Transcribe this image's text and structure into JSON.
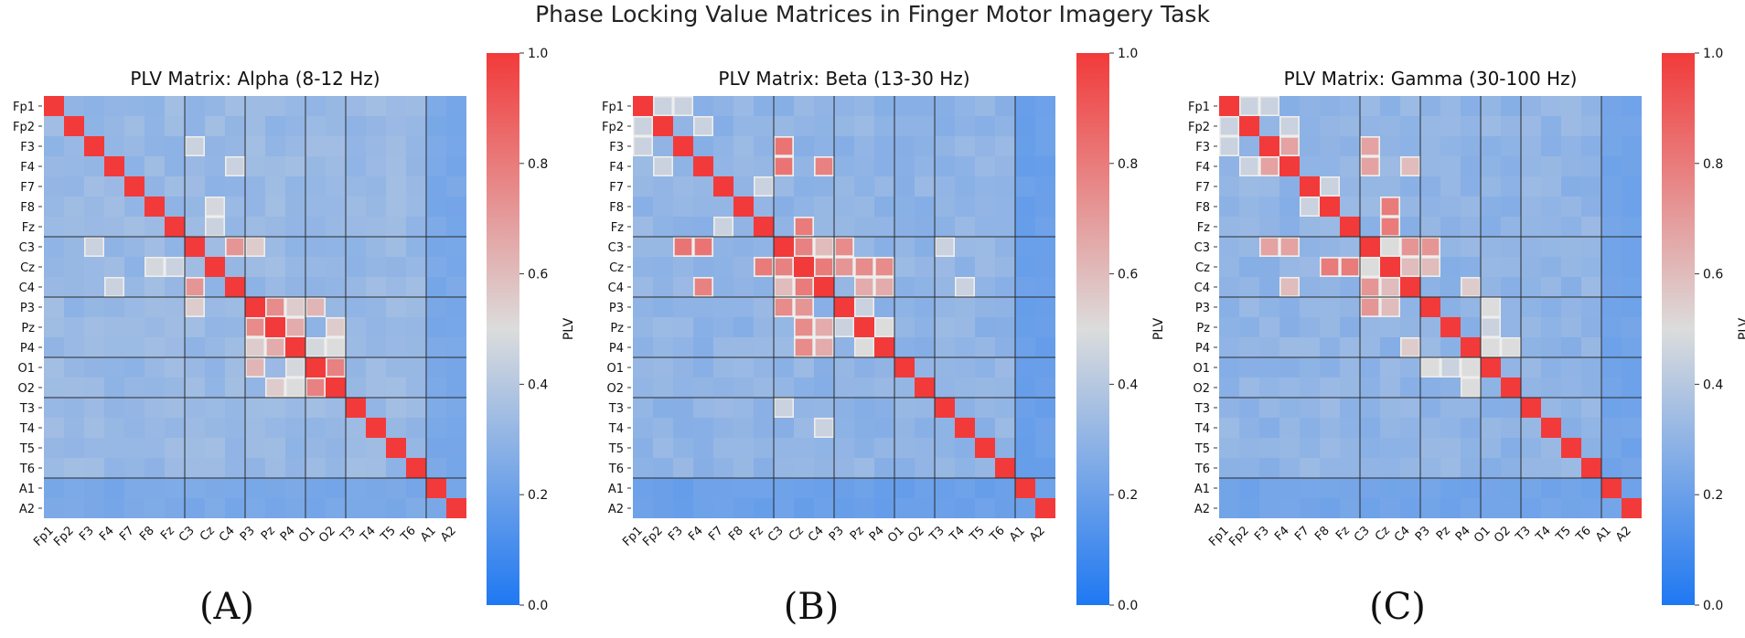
{
  "suptitle": "Phase Locking Value Matrices in Finger Motor Imagery Task",
  "panel_labels": [
    "(A)",
    "(B)",
    "(C)"
  ],
  "colors": {
    "low": "#1f78f2",
    "mid": "#dcdcdc",
    "high": "#f23a3a",
    "grid_line": "#2a2a2a",
    "highlight_border": "#e8e8e8"
  },
  "chart_data": [
    {
      "type": "heatmap",
      "title": "PLV Matrix: Alpha (8-12 Hz)",
      "channels": [
        "Fp1",
        "Fp2",
        "F3",
        "F4",
        "F7",
        "F8",
        "Fz",
        "C3",
        "Cz",
        "C4",
        "P3",
        "Pz",
        "P4",
        "O1",
        "O2",
        "T3",
        "T4",
        "T5",
        "T6",
        "A1",
        "A2"
      ],
      "diagonal": 1.0,
      "background": 0.32,
      "reference_rows": [
        19,
        20
      ],
      "reference_value": 0.24,
      "pairs": [
        [
          2,
          7,
          0.45
        ],
        [
          3,
          9,
          0.45
        ],
        [
          6,
          8,
          0.45
        ],
        [
          7,
          9,
          0.72
        ],
        [
          7,
          10,
          0.55
        ],
        [
          8,
          5,
          0.48
        ],
        [
          10,
          12,
          0.55
        ],
        [
          10,
          11,
          0.75
        ],
        [
          11,
          12,
          0.65
        ],
        [
          10,
          13,
          0.62
        ],
        [
          11,
          14,
          0.55
        ],
        [
          12,
          14,
          0.5
        ],
        [
          13,
          14,
          0.78
        ],
        [
          12,
          13,
          0.48
        ]
      ],
      "colorbar": {
        "label": "PLV",
        "range": [
          0.0,
          1.0
        ],
        "ticks": [
          "0.0",
          "0.2",
          "0.4",
          "0.6",
          "0.8",
          "1.0"
        ]
      }
    },
    {
      "type": "heatmap",
      "title": "PLV Matrix: Beta (13-30 Hz)",
      "channels": [
        "Fp1",
        "Fp2",
        "F3",
        "F4",
        "F7",
        "F8",
        "Fz",
        "C3",
        "Cz",
        "C4",
        "P3",
        "Pz",
        "P4",
        "O1",
        "O2",
        "T3",
        "T4",
        "T5",
        "T6",
        "A1",
        "A2"
      ],
      "diagonal": 1.0,
      "background": 0.3,
      "reference_rows": [
        19,
        20
      ],
      "reference_value": 0.2,
      "pairs": [
        [
          0,
          1,
          0.45
        ],
        [
          0,
          2,
          0.45
        ],
        [
          1,
          3,
          0.45
        ],
        [
          2,
          7,
          0.82
        ],
        [
          3,
          9,
          0.78
        ],
        [
          4,
          6,
          0.45
        ],
        [
          6,
          8,
          0.8
        ],
        [
          7,
          8,
          0.78
        ],
        [
          7,
          9,
          0.6
        ],
        [
          7,
          10,
          0.75
        ],
        [
          7,
          15,
          0.45
        ],
        [
          8,
          9,
          0.8
        ],
        [
          8,
          11,
          0.75
        ],
        [
          8,
          12,
          0.75
        ],
        [
          8,
          10,
          0.72
        ],
        [
          9,
          12,
          0.72
        ],
        [
          9,
          16,
          0.45
        ],
        [
          10,
          11,
          0.45
        ],
        [
          11,
          12,
          0.5
        ],
        [
          11,
          9,
          0.65
        ],
        [
          12,
          9,
          0.65
        ],
        [
          7,
          3,
          0.82
        ]
      ],
      "colorbar": {
        "label": "PLV",
        "range": [
          0.0,
          1.0
        ],
        "ticks": [
          "0.0",
          "0.2",
          "0.4",
          "0.6",
          "0.8",
          "1.0"
        ]
      }
    },
    {
      "type": "heatmap",
      "title": "PLV Matrix: Gamma (30-100 Hz)",
      "channels": [
        "Fp1",
        "Fp2",
        "F3",
        "F4",
        "F7",
        "F8",
        "Fz",
        "C3",
        "Cz",
        "C4",
        "P3",
        "Pz",
        "P4",
        "O1",
        "O2",
        "T3",
        "T4",
        "T5",
        "T6",
        "A1",
        "A2"
      ],
      "diagonal": 1.0,
      "background": 0.3,
      "reference_rows": [
        19,
        20
      ],
      "reference_value": 0.22,
      "pairs": [
        [
          0,
          1,
          0.45
        ],
        [
          0,
          2,
          0.45
        ],
        [
          1,
          3,
          0.45
        ],
        [
          2,
          3,
          0.68
        ],
        [
          2,
          7,
          0.68
        ],
        [
          3,
          9,
          0.6
        ],
        [
          4,
          5,
          0.45
        ],
        [
          6,
          8,
          0.8
        ],
        [
          7,
          8,
          0.5
        ],
        [
          7,
          9,
          0.72
        ],
        [
          7,
          10,
          0.72
        ],
        [
          8,
          9,
          0.6
        ],
        [
          8,
          10,
          0.6
        ],
        [
          8,
          5,
          0.8
        ],
        [
          9,
          12,
          0.55
        ],
        [
          10,
          13,
          0.5
        ],
        [
          12,
          14,
          0.5
        ],
        [
          11,
          13,
          0.45
        ],
        [
          12,
          13,
          0.5
        ],
        [
          3,
          7,
          0.68
        ]
      ],
      "colorbar": {
        "label": "PLV",
        "range": [
          0.0,
          1.0
        ],
        "ticks": [
          "0.0",
          "0.2",
          "0.4",
          "0.6",
          "0.8",
          "1.0"
        ]
      }
    }
  ]
}
